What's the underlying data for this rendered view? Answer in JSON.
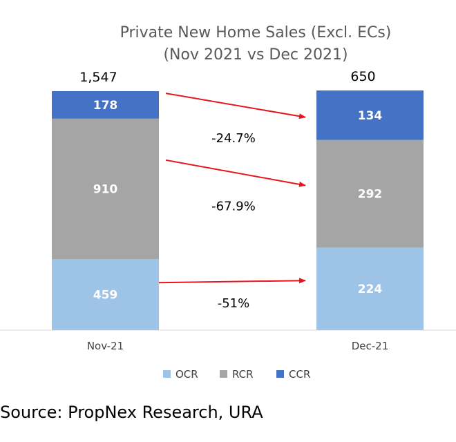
{
  "chart_data": {
    "type": "bar",
    "stacked": true,
    "title": "Private New Home Sales (Excl. ECs)",
    "subtitle": "(Nov 2021 vs Dec 2021)",
    "categories": [
      "Nov-21",
      "Dec-21"
    ],
    "totals": [
      "1,547",
      "650"
    ],
    "series": [
      {
        "name": "OCR",
        "values": [
          459,
          224
        ],
        "color": "#9DC3E6"
      },
      {
        "name": "RCR",
        "values": [
          910,
          292
        ],
        "color": "#A5A5A5"
      },
      {
        "name": "CCR",
        "values": [
          178,
          134
        ],
        "color": "#4472C4"
      }
    ],
    "changes": [
      {
        "series": "OCR",
        "label": "-51%"
      },
      {
        "series": "RCR",
        "label": "-67.9%"
      },
      {
        "series": "CCR",
        "label": "-24.7%"
      }
    ],
    "arrow_color": "#E8141B",
    "legend_position": "bottom",
    "grid": false
  },
  "source": "Source: PropNex Research, URA"
}
